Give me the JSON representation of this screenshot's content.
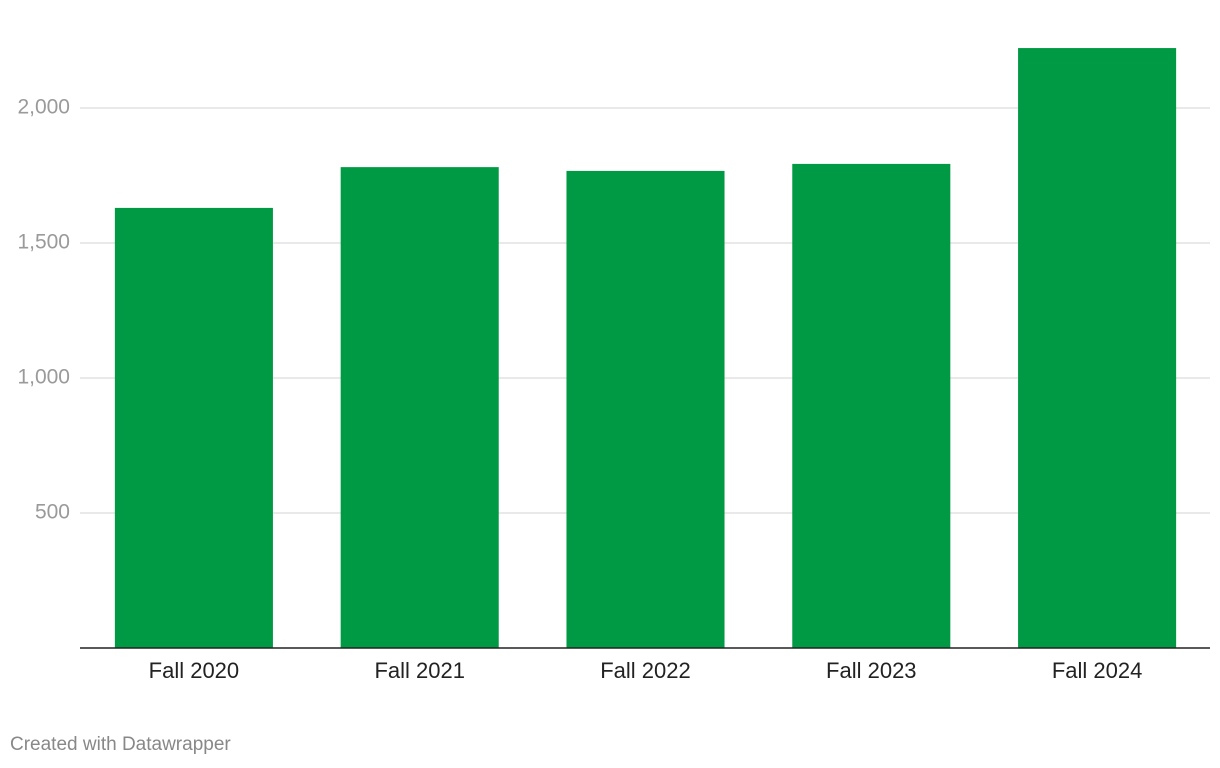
{
  "chart_data": {
    "type": "bar",
    "categories": [
      "Fall 2020",
      "Fall 2021",
      "Fall 2022",
      "Fall 2023",
      "Fall 2024"
    ],
    "values": [
      1630,
      1781,
      1767,
      1793,
      2222
    ],
    "color": "#009a44",
    "ylim": [
      0,
      2250
    ],
    "yticks": [
      500,
      {
        "value": 1000,
        "label": "1,000"
      },
      {
        "value": 1500,
        "label": "1,500"
      },
      {
        "value": 2000,
        "label": "2,000"
      }
    ],
    "grid": true,
    "credit": "Created with Datawrapper"
  }
}
